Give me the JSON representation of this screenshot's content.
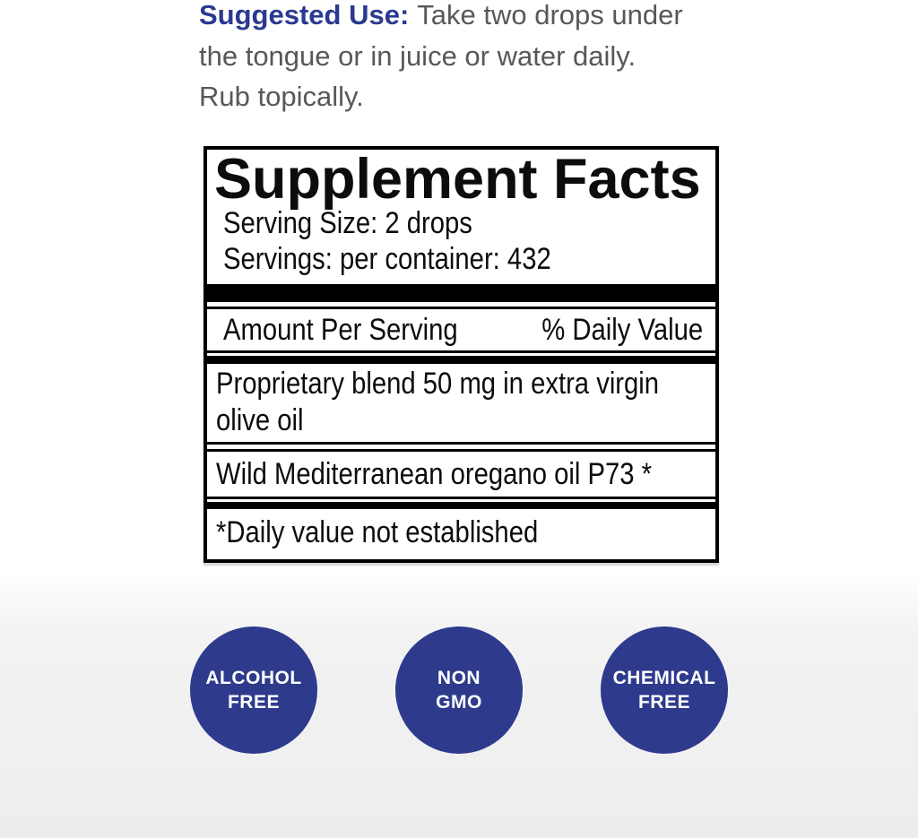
{
  "colors": {
    "brand_blue": "#2b3990",
    "badge_blue": "#2e3a8c",
    "text_gray": "#57585b"
  },
  "suggested_use": {
    "label": "Suggested Use:",
    "line1_rest": "Take two drops under",
    "line2": "the tongue or in juice or water daily.",
    "line3": "Rub topically."
  },
  "supplement_facts": {
    "title": "Supplement Facts",
    "serving_size": "Serving Size: 2 drops",
    "servings_per_container": "Servings: per container: 432",
    "amount_per_serving_label": "Amount Per Serving",
    "daily_value_label": "% Daily Value",
    "proprietary_line1": "Proprietary blend 50 mg in extra virgin",
    "proprietary_line2": "olive oil",
    "ingredient_row": "Wild Mediterranean oregano oil P73 *",
    "footnote": "*Daily value not established"
  },
  "badges": [
    {
      "line1": "ALCOHOL",
      "line2": "FREE"
    },
    {
      "line1": "NON",
      "line2": "GMO"
    },
    {
      "line1": "CHEMICAL",
      "line2": "FREE"
    }
  ]
}
